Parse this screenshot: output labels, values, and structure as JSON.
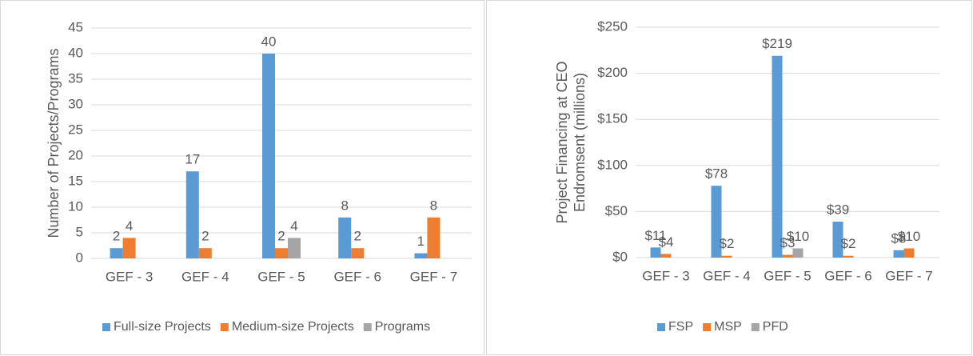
{
  "chart_data": [
    {
      "type": "bar",
      "y_label": [
        "Number of Projects/Programs"
      ],
      "categories": [
        "GEF - 3",
        "GEF - 4",
        "GEF - 5",
        "GEF - 6",
        "GEF - 7"
      ],
      "series": [
        {
          "name": "Full-size Projects",
          "color": "#5b9bd5",
          "values": [
            2,
            17,
            40,
            8,
            1
          ]
        },
        {
          "name": "Medium-size Projects",
          "color": "#ed7d31",
          "values": [
            4,
            2,
            2,
            2,
            8
          ]
        },
        {
          "name": "Programs",
          "color": "#a5a5a5",
          "values": [
            null,
            null,
            4,
            null,
            null
          ]
        }
      ],
      "ylim": [
        0,
        45
      ],
      "yticks": [
        0,
        5,
        10,
        15,
        20,
        25,
        30,
        35,
        40,
        45
      ],
      "grid": true,
      "legend": "bottom"
    },
    {
      "type": "bar",
      "y_label": [
        "Project Financing  at CEO",
        "Endromsent (millions)"
      ],
      "categories": [
        "GEF - 3",
        "GEF - 4",
        "GEF - 5",
        "GEF - 6",
        "GEF - 7"
      ],
      "series": [
        {
          "name": "FSP",
          "color": "#5b9bd5",
          "values": [
            11,
            78,
            219,
            39,
            8
          ],
          "value_labels": [
            "$11",
            "$78",
            "$219",
            "$39",
            "$8"
          ]
        },
        {
          "name": "MSP",
          "color": "#ed7d31",
          "values": [
            4,
            2,
            3,
            2,
            10
          ],
          "value_labels": [
            "$4",
            "$2",
            "$3",
            "$2",
            "$10"
          ]
        },
        {
          "name": "PFD",
          "color": "#a5a5a5",
          "values": [
            null,
            null,
            10,
            null,
            null
          ],
          "value_labels": [
            null,
            null,
            "$10",
            null,
            null
          ]
        }
      ],
      "ylim": [
        0,
        250
      ],
      "yticks": [
        {
          "value": 0,
          "label": "$0"
        },
        {
          "value": 50,
          "label": "$50"
        },
        {
          "value": 100,
          "label": "$100"
        },
        {
          "value": 150,
          "label": "$150"
        },
        {
          "value": 200,
          "label": "$200"
        },
        {
          "value": 250,
          "label": "$250"
        }
      ],
      "grid": true,
      "legend": "bottom"
    }
  ]
}
